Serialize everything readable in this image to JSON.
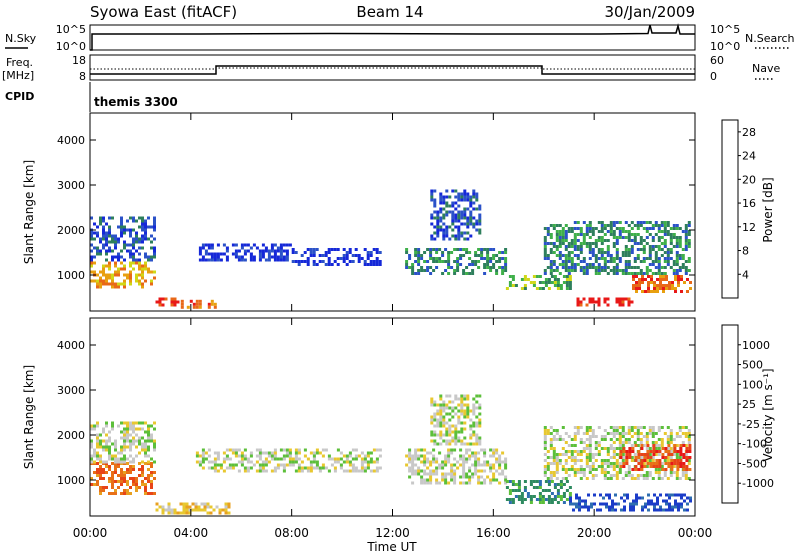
{
  "header": {
    "station": "Syowa East (fitACF)",
    "beam": "Beam 14",
    "date": "30/Jan/2009"
  },
  "top_panels": {
    "nsky_label": "N.Sky",
    "nsky_ticks": [
      "10^5",
      "10^0"
    ],
    "nsearch_label": "N.Search",
    "nsearch_ticks": [
      "10^5",
      "10^0"
    ],
    "freq_label": "Freq.",
    "freq_unit": "[MHz]",
    "freq_ticks": [
      "18",
      "8"
    ],
    "nave_label": "Nave",
    "nave_ticks": [
      "60",
      "0"
    ],
    "cpid_label": "CPID",
    "cpid_value": "themis 3300"
  },
  "chart_data": [
    {
      "type": "heatmap",
      "name": "power",
      "ylabel": "Slant Range [km]",
      "yticks": [
        "4000",
        "3000",
        "2000",
        "1000"
      ],
      "ytick_values": [
        4000,
        3000,
        2000,
        1000
      ],
      "ylim": [
        200,
        4600
      ],
      "xlim_hours": [
        0,
        24
      ],
      "colorbar_label": "Power [dB]",
      "colorbar_ticks": [
        "28",
        "24",
        "20",
        "16",
        "12",
        "8",
        "4"
      ],
      "colorbar_tick_values": [
        28,
        24,
        20,
        16,
        12,
        8,
        4
      ],
      "colorbar_range": [
        0,
        30
      ],
      "colors": [
        "#1528d8",
        "#2b52c8",
        "#2e7f5c",
        "#3fb04a",
        "#d0d818",
        "#e8a010",
        "#e86818",
        "#e81818"
      ],
      "regions": [
        {
          "t": [
            0.0,
            2.6
          ],
          "r": [
            700,
            1300
          ],
          "level": 5
        },
        {
          "t": [
            0.0,
            2.6
          ],
          "r": [
            1300,
            2300
          ],
          "level": 1
        },
        {
          "t": [
            2.6,
            3.6
          ],
          "r": [
            300,
            500
          ],
          "level": 7
        },
        {
          "t": [
            3.6,
            5.0
          ],
          "r": [
            250,
            450
          ],
          "level": 6
        },
        {
          "t": [
            4.2,
            8.0
          ],
          "r": [
            1300,
            1700
          ],
          "level": 0
        },
        {
          "t": [
            8.0,
            11.5
          ],
          "r": [
            1200,
            1600
          ],
          "level": 0
        },
        {
          "t": [
            12.5,
            16.5
          ],
          "r": [
            1000,
            1600
          ],
          "level": 2
        },
        {
          "t": [
            13.5,
            15.5
          ],
          "r": [
            1800,
            2900
          ],
          "level": 1
        },
        {
          "t": [
            16.5,
            19.0
          ],
          "r": [
            700,
            1000
          ],
          "level": 3
        },
        {
          "t": [
            18.0,
            23.8
          ],
          "r": [
            1000,
            2200
          ],
          "level": 2
        },
        {
          "t": [
            19.3,
            21.5
          ],
          "r": [
            300,
            500
          ],
          "level": 7
        },
        {
          "t": [
            21.5,
            23.8
          ],
          "r": [
            600,
            1000
          ],
          "level": 6
        }
      ]
    },
    {
      "type": "heatmap",
      "name": "velocity",
      "ylabel": "Slant Range [km]",
      "yticks": [
        "4000",
        "3000",
        "2000",
        "1000"
      ],
      "ytick_values": [
        4000,
        3000,
        2000,
        1000
      ],
      "ylim": [
        200,
        4600
      ],
      "xlim_hours": [
        0,
        24
      ],
      "colorbar_label": "Velocity [m s⁻¹]",
      "colorbar_ticks": [
        "1000",
        "500",
        "100",
        "25",
        "-25",
        "-100",
        "-500",
        "-1000"
      ],
      "colors": [
        "#1b3cc8",
        "#2e6eb0",
        "#2e8a60",
        "#5cbf3a",
        "#c8c8c8",
        "#e8c830",
        "#e8a020",
        "#e87018",
        "#e84418",
        "#e81818"
      ],
      "regions": [
        {
          "t": [
            0.0,
            2.6
          ],
          "r": [
            700,
            1400
          ],
          "level": 7
        },
        {
          "t": [
            0.0,
            2.6
          ],
          "r": [
            1400,
            2300
          ],
          "level": 4
        },
        {
          "t": [
            2.6,
            5.5
          ],
          "r": [
            250,
            500
          ],
          "level": 5
        },
        {
          "t": [
            4.2,
            11.5
          ],
          "r": [
            1200,
            1700
          ],
          "level": 4
        },
        {
          "t": [
            12.5,
            16.5
          ],
          "r": [
            900,
            1700
          ],
          "level": 4
        },
        {
          "t": [
            13.5,
            15.5
          ],
          "r": [
            1800,
            2900
          ],
          "level": 4
        },
        {
          "t": [
            16.5,
            19.0
          ],
          "r": [
            500,
            1000
          ],
          "level": 2
        },
        {
          "t": [
            18.0,
            23.8
          ],
          "r": [
            1000,
            2200
          ],
          "level": 4
        },
        {
          "t": [
            19.0,
            23.8
          ],
          "r": [
            300,
            700
          ],
          "level": 0
        },
        {
          "t": [
            21.0,
            23.8
          ],
          "r": [
            1200,
            1800
          ],
          "level": 8
        }
      ]
    }
  ],
  "xaxis": {
    "xlabel": "Time UT",
    "ticks": [
      "00:00",
      "04:00",
      "08:00",
      "12:00",
      "16:00",
      "20:00",
      "00:00"
    ],
    "tick_hours": [
      0,
      4,
      8,
      12,
      16,
      20,
      24
    ]
  }
}
